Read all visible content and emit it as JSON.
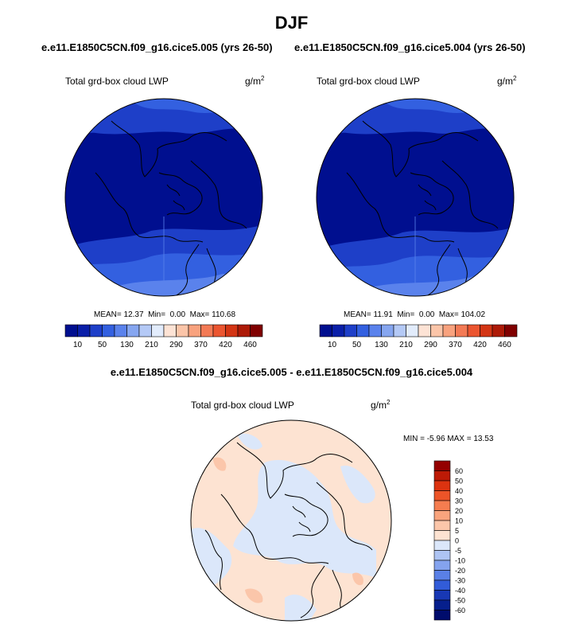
{
  "title": "DJF",
  "case_a": "e.e11.E1850C5CN.f09_g16.cice5.005 (yrs 26-50)",
  "case_b": "e.e11.E1850C5CN.f09_g16.cice5.004 (yrs 26-50)",
  "diff_title": "e.e11.E1850C5CN.f09_g16.cice5.005 - e.e11.E1850C5CN.f09_g16.cice5.004",
  "panels": [
    {
      "label": "Total grd-box cloud LWP",
      "units_base": "g/m",
      "units_exp": "2",
      "mean_label": "MEAN=",
      "mean": "12.37",
      "min_label": "Min=",
      "min": "0.00",
      "max_label": "Max=",
      "max": "110.68"
    },
    {
      "label": "Total grd-box cloud LWP",
      "units_base": "g/m",
      "units_exp": "2",
      "mean_label": "MEAN=",
      "mean": "11.91",
      "min_label": "Min=",
      "min": "0.00",
      "max_label": "Max=",
      "max": "104.02"
    }
  ],
  "diff_panel": {
    "label": "Total grd-box cloud LWP",
    "units_base": "g/m",
    "units_exp": "2",
    "stats": "MIN =  -5.96 MAX =  13.53"
  },
  "colorbar_top": {
    "tick_labels": [
      "10",
      "50",
      "130",
      "210",
      "290",
      "370",
      "420",
      "460"
    ],
    "colors": [
      "#000f8f",
      "#0a1fa8",
      "#1e3fc8",
      "#3360e0",
      "#5a82ec",
      "#86a6f0",
      "#b4c9f6",
      "#e2ecfc",
      "#fde3d5",
      "#fbc5a9",
      "#f8a27e",
      "#f37a55",
      "#eb5530",
      "#d33514",
      "#ad1a07",
      "#800000"
    ]
  },
  "colorbar_diff": {
    "tick_labels": [
      "60",
      "50",
      "40",
      "30",
      "20",
      "10",
      "5",
      "0",
      "-5",
      "-10",
      "-20",
      "-30",
      "-40",
      "-50",
      "-60"
    ],
    "colors": [
      "#940000",
      "#bd1a06",
      "#dc3310",
      "#ec5428",
      "#f57d50",
      "#f9a47d",
      "#fbc6aa",
      "#fde3d2",
      "#dbe7fa",
      "#aec4f3",
      "#84a3ee",
      "#5a80e6",
      "#325cd8",
      "#1838b4",
      "#061f8c",
      "#000c6c"
    ]
  }
}
